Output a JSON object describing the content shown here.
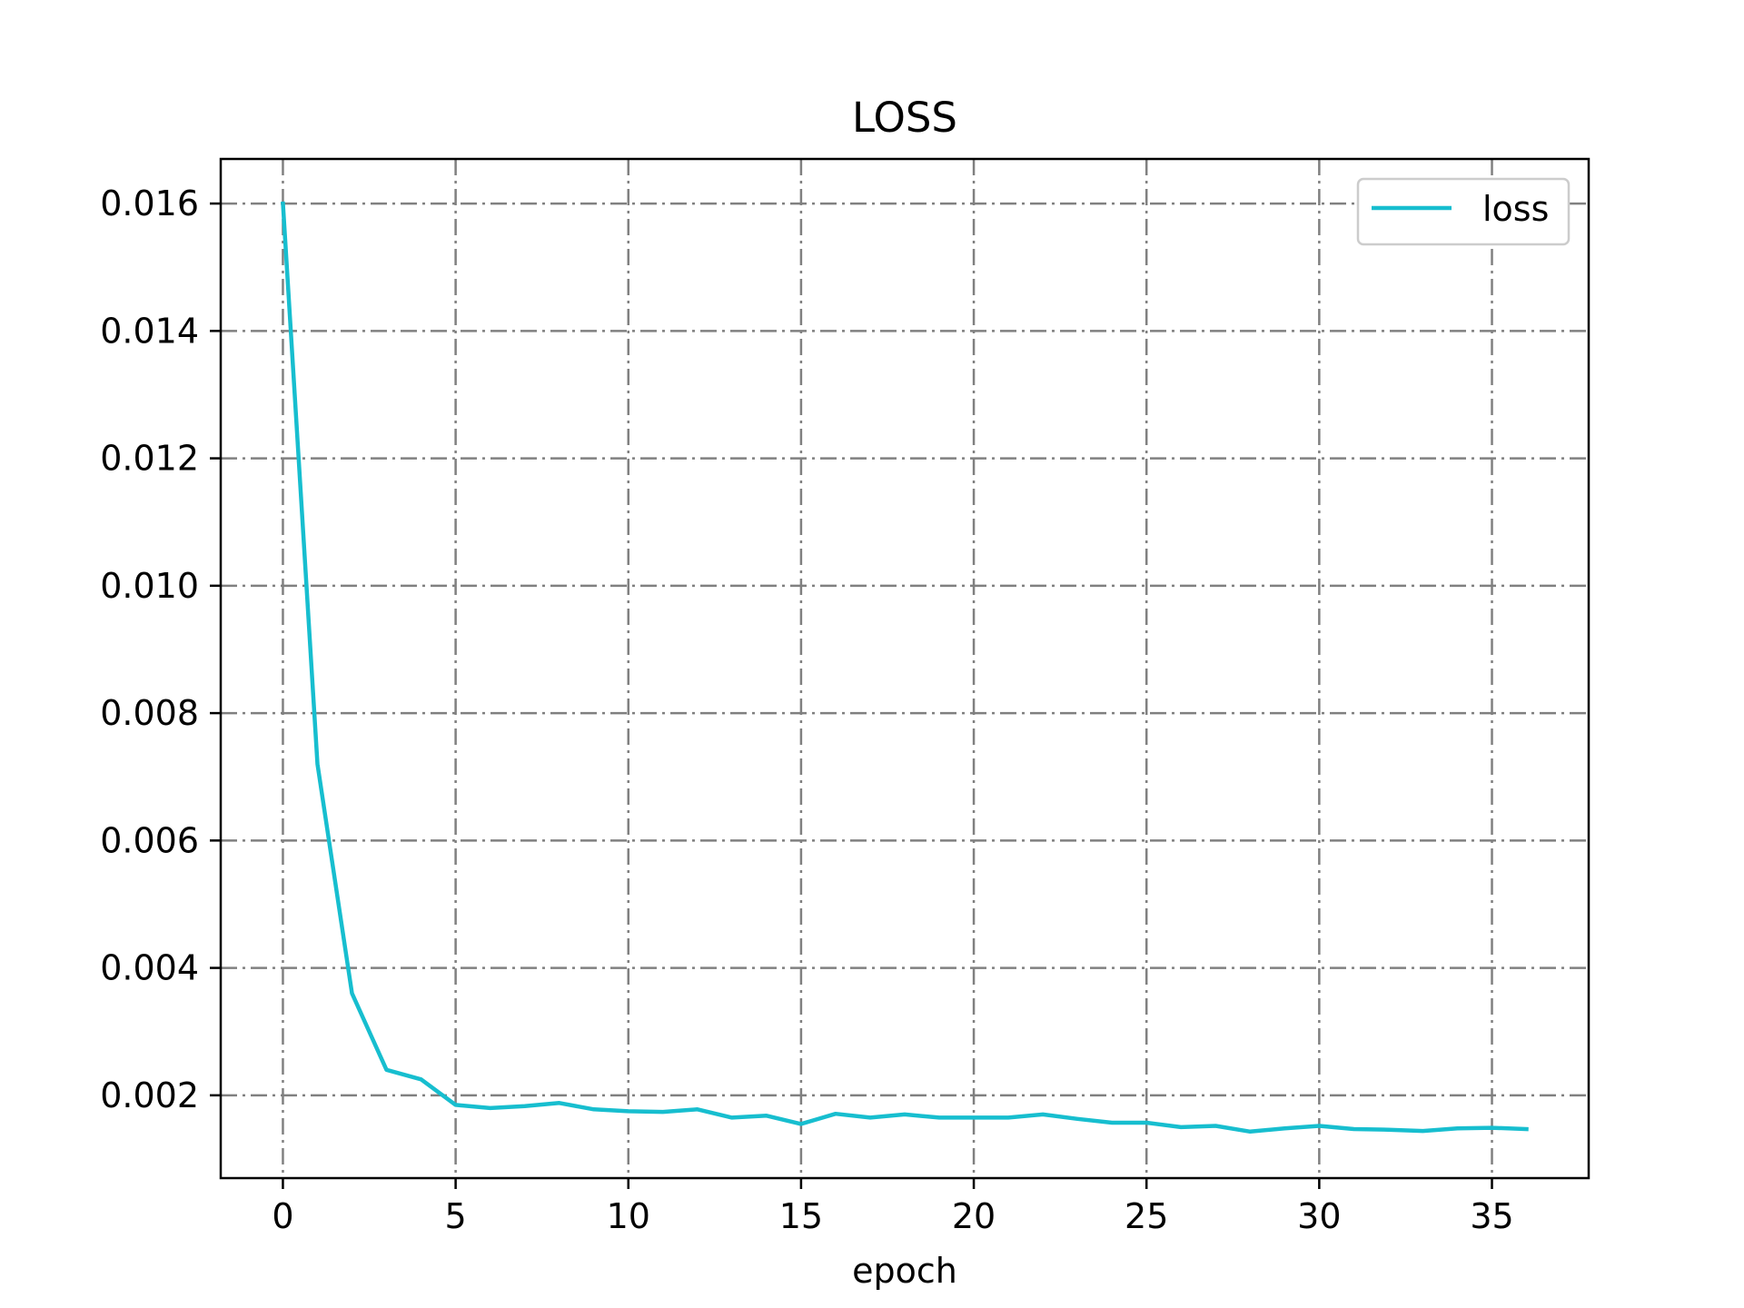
{
  "chart_data": {
    "type": "line",
    "title": "LOSS",
    "xlabel": "epoch",
    "ylabel": "",
    "xlim": [
      -1.8,
      37.8
    ],
    "ylim": [
      0.0007,
      0.0167
    ],
    "xticks": [
      0,
      5,
      10,
      15,
      20,
      25,
      30,
      35
    ],
    "xtick_labels": [
      "0",
      "5",
      "10",
      "15",
      "20",
      "25",
      "30",
      "35"
    ],
    "yticks": [
      0.002,
      0.004,
      0.006,
      0.008,
      0.01,
      0.012,
      0.014,
      0.016
    ],
    "ytick_labels": [
      "0.002",
      "0.004",
      "0.006",
      "0.008",
      "0.010",
      "0.012",
      "0.014",
      "0.016"
    ],
    "grid": true,
    "legend_position": "top-right",
    "series_color": "#17becf",
    "series": [
      {
        "name": "loss",
        "x": [
          0,
          1,
          2,
          3,
          4,
          5,
          6,
          7,
          8,
          9,
          10,
          11,
          12,
          13,
          14,
          15,
          16,
          17,
          18,
          19,
          20,
          21,
          22,
          23,
          24,
          25,
          26,
          27,
          28,
          29,
          30,
          31,
          32,
          33,
          34,
          35,
          36
        ],
        "values": [
          0.016,
          0.0072,
          0.0036,
          0.0024,
          0.00225,
          0.00185,
          0.0018,
          0.00183,
          0.00188,
          0.00178,
          0.00175,
          0.00174,
          0.00178,
          0.00165,
          0.00168,
          0.00155,
          0.00171,
          0.00165,
          0.0017,
          0.00165,
          0.00165,
          0.00165,
          0.0017,
          0.00163,
          0.00157,
          0.00157,
          0.0015,
          0.00152,
          0.00143,
          0.00148,
          0.00152,
          0.00147,
          0.00146,
          0.00144,
          0.00148,
          0.00149,
          0.00147
        ]
      }
    ]
  }
}
